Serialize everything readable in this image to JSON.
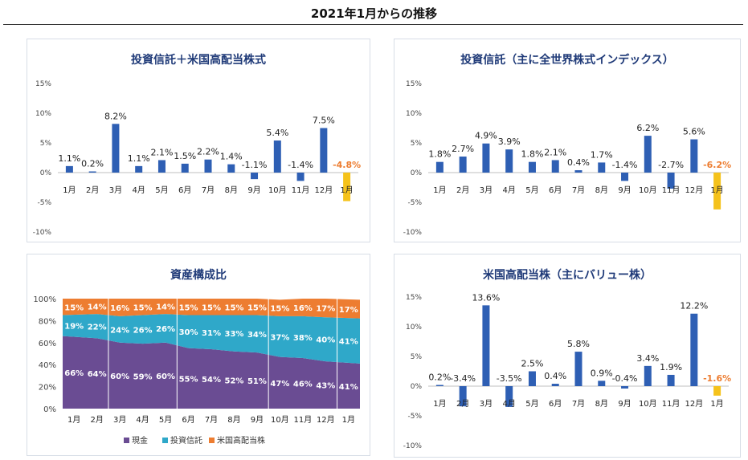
{
  "page": {
    "title": "2021年1月からの推移"
  },
  "colors": {
    "title_blue": "#1f3a78",
    "bar_blue": "#2e5fb4",
    "bar_highlight": "#f5c21b",
    "highlight_label": "#ed7d31",
    "cash": "#6a4c93",
    "fund": "#2fa8c9",
    "us_stock": "#ed7d31",
    "axis_text": "#444444",
    "gridline": "#bfbfbf"
  },
  "chart_data": [
    {
      "type": "bar",
      "title": "投資信託＋米国高配当株式",
      "categories": [
        "1月",
        "2月",
        "3月",
        "4月",
        "5月",
        "6月",
        "7月",
        "8月",
        "9月",
        "10月",
        "11月",
        "12月",
        "1月"
      ],
      "values": [
        1.1,
        0.2,
        8.2,
        1.1,
        2.1,
        1.5,
        2.2,
        1.4,
        -1.1,
        5.4,
        -1.4,
        7.5,
        -4.8
      ],
      "data_labels": [
        "1.1%",
        "0.2%",
        "8.2%",
        "1.1%",
        "2.1%",
        "1.5%",
        "2.2%",
        "1.4%",
        "-1.1%",
        "5.4%",
        "-1.4%",
        "7.5%",
        "-4.8%"
      ],
      "highlight_index": 12,
      "ylim": [
        -10,
        15
      ],
      "yticks": [
        15,
        10,
        5,
        0,
        -5,
        -10
      ],
      "ytick_labels": [
        "15%",
        "10%",
        "5%",
        "0%",
        "-5%",
        "-10%"
      ],
      "grid": false
    },
    {
      "type": "bar",
      "title": "投資信託（主に全世界株式インデックス）",
      "categories": [
        "1月",
        "2月",
        "3月",
        "4月",
        "5月",
        "6月",
        "7月",
        "8月",
        "9月",
        "10月",
        "11月",
        "12月",
        "1月"
      ],
      "values": [
        1.8,
        2.7,
        4.9,
        3.9,
        1.8,
        2.1,
        0.4,
        1.7,
        -1.4,
        6.2,
        -2.7,
        5.6,
        -6.2
      ],
      "data_labels": [
        "1.8%",
        "2.7%",
        "4.9%",
        "3.9%",
        "1.8%",
        "2.1%",
        "0.4%",
        "1.7%",
        "-1.4%",
        "6.2%",
        "-2.7%",
        "5.6%",
        "-6.2%"
      ],
      "highlight_index": 12,
      "ylim": [
        -10,
        15
      ],
      "yticks": [
        15,
        10,
        5,
        0,
        -5,
        -10
      ],
      "ytick_labels": [
        "15%",
        "10%",
        "5%",
        "0%",
        "-5%",
        "-10%"
      ],
      "grid": false
    },
    {
      "type": "area",
      "stacked": "percent",
      "title": "資産構成比",
      "categories": [
        "1月",
        "2月",
        "3月",
        "4月",
        "5月",
        "6月",
        "7月",
        "8月",
        "9月",
        "10月",
        "11月",
        "12月",
        "1月"
      ],
      "series": [
        {
          "name": "現金",
          "values": [
            66,
            64,
            60,
            59,
            60,
            55,
            54,
            52,
            51,
            47,
            46,
            43,
            41
          ],
          "labels": [
            "66%",
            "64%",
            "60%",
            "59%",
            "60%",
            "55%",
            "54%",
            "52%",
            "51%",
            "47%",
            "46%",
            "43%",
            "41%"
          ]
        },
        {
          "name": "投資信託",
          "values": [
            19,
            22,
            24,
            26,
            26,
            30,
            31,
            33,
            34,
            37,
            38,
            40,
            41
          ],
          "labels": [
            "19%",
            "22%",
            "24%",
            "26%",
            "26%",
            "30%",
            "31%",
            "33%",
            "34%",
            "37%",
            "38%",
            "40%",
            "41%"
          ]
        },
        {
          "name": "米国高配当株",
          "values": [
            15,
            14,
            16,
            15,
            14,
            15,
            15,
            15,
            15,
            15,
            16,
            17,
            17
          ],
          "labels": [
            "15%",
            "14%",
            "16%",
            "15%",
            "14%",
            "15%",
            "15%",
            "15%",
            "15%",
            "15%",
            "16%",
            "17%",
            "17%"
          ]
        }
      ],
      "ylim": [
        0,
        100
      ],
      "yticks": [
        100,
        80,
        60,
        40,
        20,
        0
      ],
      "ytick_labels": [
        "100%",
        "80%",
        "60%",
        "40%",
        "20%",
        "0%"
      ],
      "legend_position": "bottom",
      "grid": false
    },
    {
      "type": "bar",
      "title": "米国高配当株（主にバリュー株）",
      "categories": [
        "1月",
        "2月",
        "3月",
        "4月",
        "5月",
        "6月",
        "7月",
        "8月",
        "9月",
        "10月",
        "11月",
        "12月",
        "1月"
      ],
      "values": [
        0.2,
        -3.4,
        13.6,
        -3.5,
        2.5,
        0.4,
        5.8,
        0.9,
        -0.4,
        3.4,
        1.9,
        12.2,
        -1.6
      ],
      "data_labels": [
        "0.2%",
        "-3.4%",
        "13.6%",
        "-3.5%",
        "2.5%",
        "0.4%",
        "5.8%",
        "0.9%",
        "-0.4%",
        "3.4%",
        "1.9%",
        "12.2%",
        "-1.6%"
      ],
      "highlight_index": 12,
      "ylim": [
        -10,
        15
      ],
      "yticks": [
        15,
        10,
        5,
        0,
        -5,
        -10
      ],
      "ytick_labels": [
        "15%",
        "10%",
        "5%",
        "0%",
        "-5%",
        "-10%"
      ],
      "grid": false
    }
  ]
}
